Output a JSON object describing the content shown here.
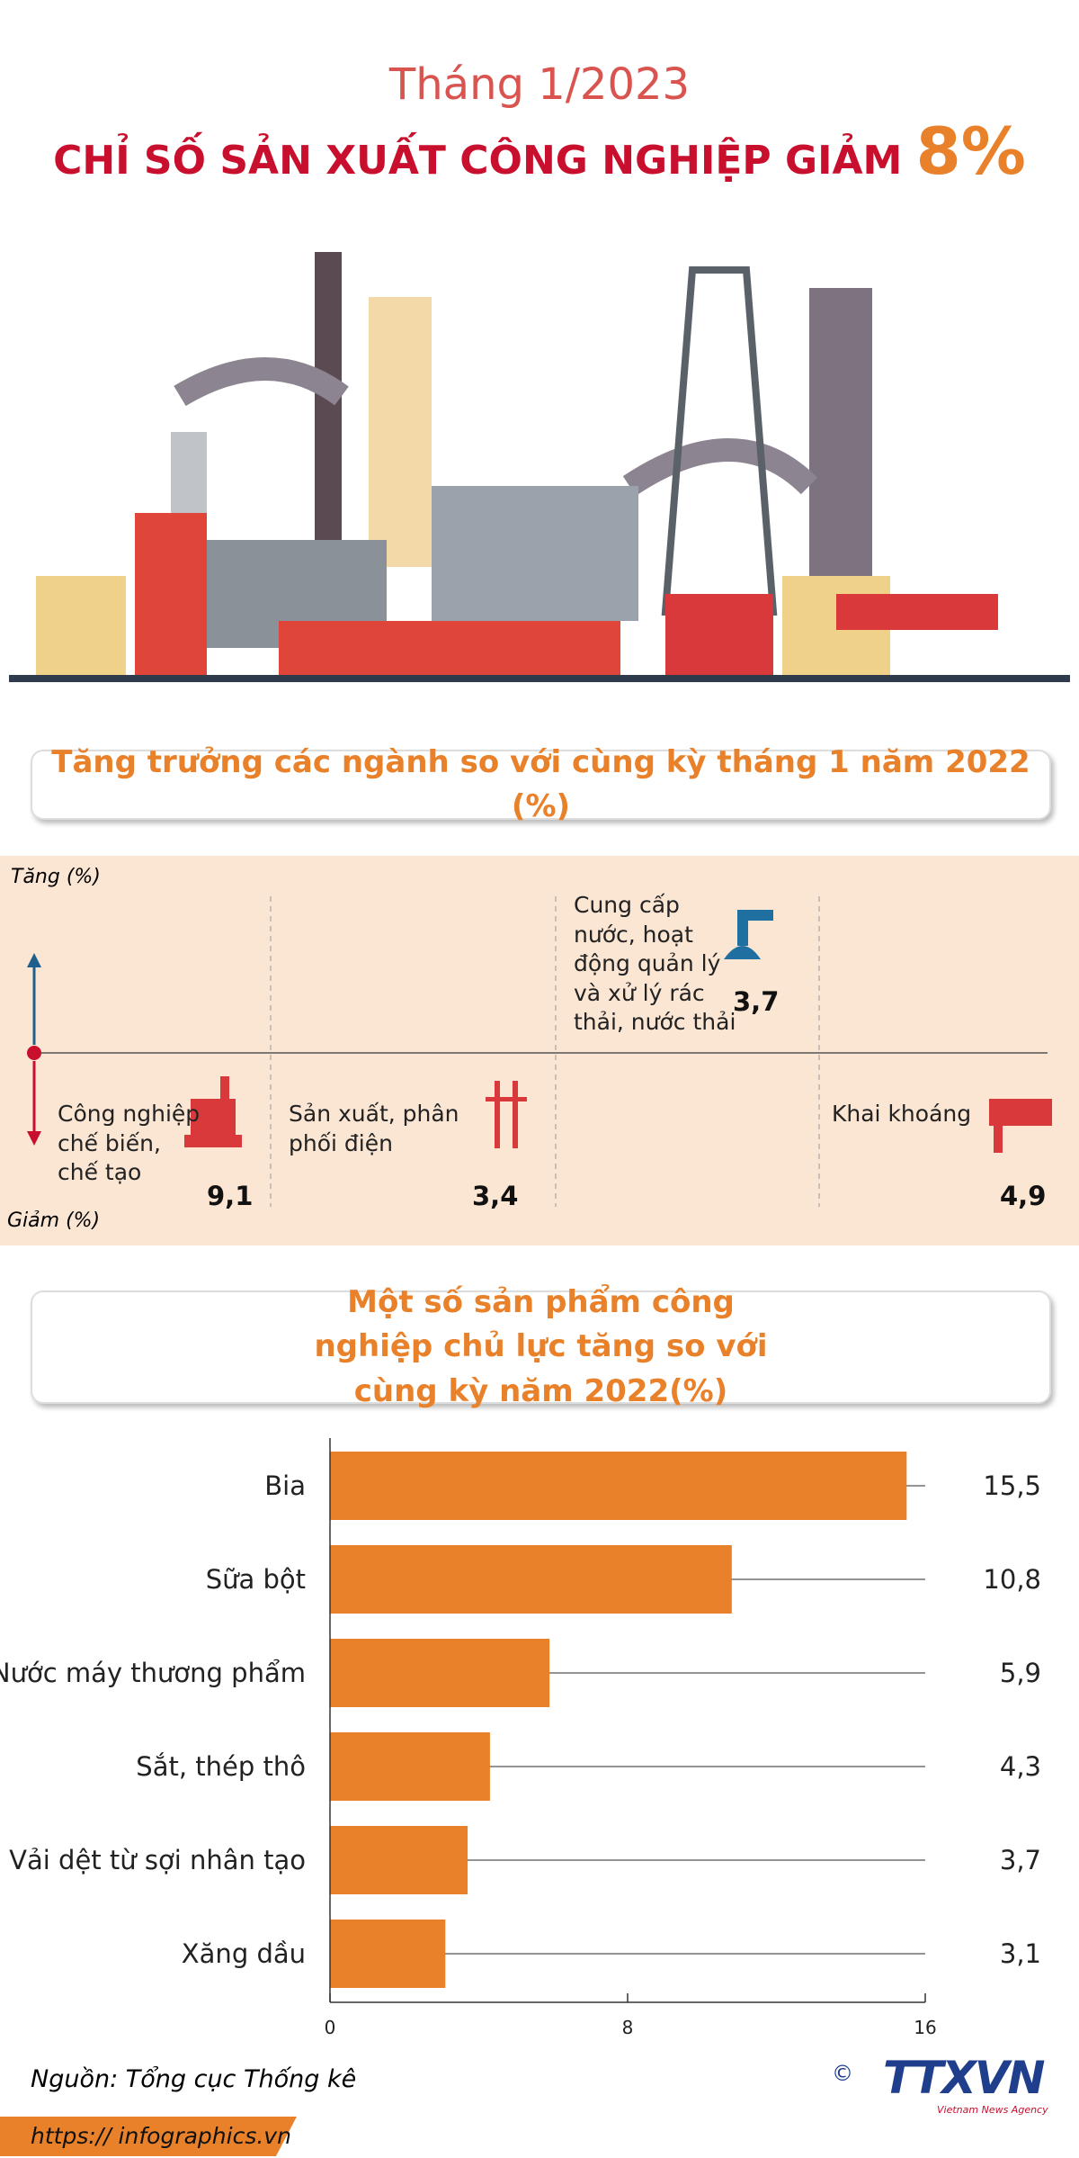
{
  "header": {
    "subtitle": "Tháng 1/2023",
    "title": "CHỈ SỐ SẢN XUẤT CÔNG NGHIỆP GIẢM",
    "highlight": "8%"
  },
  "growth": {
    "title": "Tăng trưởng các ngành so với cùng kỳ tháng 1 năm 2022 (%)",
    "up_label": "Tăng (%)",
    "down_label": "Giảm (%)",
    "items": [
      {
        "label": "Công nghiệp chế biến, chế tạo",
        "value": "9,1"
      },
      {
        "label": "Sản xuất, phân phối điện",
        "value": "3,4"
      },
      {
        "label": "Cung cấp nước, hoạt động quản lý và xử lý rác thải, nước thải",
        "value": "3,7"
      },
      {
        "label": "Khai khoáng",
        "value": "4,9"
      }
    ]
  },
  "chart_data": {
    "type": "hbar",
    "title": "Một số sản phẩm công nghiệp chủ lực tăng so với cùng kỳ năm 2022(%)",
    "categories": [
      "Bia",
      "Sữa bột",
      "Nước máy thương phẩm",
      "Sắt, thép thô",
      "Vải dệt từ sợi nhân tạo",
      "Xăng dầu"
    ],
    "values": [
      15.5,
      10.8,
      5.9,
      4.3,
      3.7,
      3.1
    ],
    "value_labels": [
      "15,5",
      "10,8",
      "5,9",
      "4,3",
      "3,7",
      "3,1"
    ],
    "color": "#e8812a",
    "xlim": [
      0,
      16
    ],
    "xticks": [
      0,
      8,
      16
    ]
  },
  "footer": {
    "source": "Nguồn: Tổng cục Thống kê",
    "url": "https:// infographics.vn",
    "logo": "TTXVN",
    "agency": "Vietnam News Agency"
  }
}
